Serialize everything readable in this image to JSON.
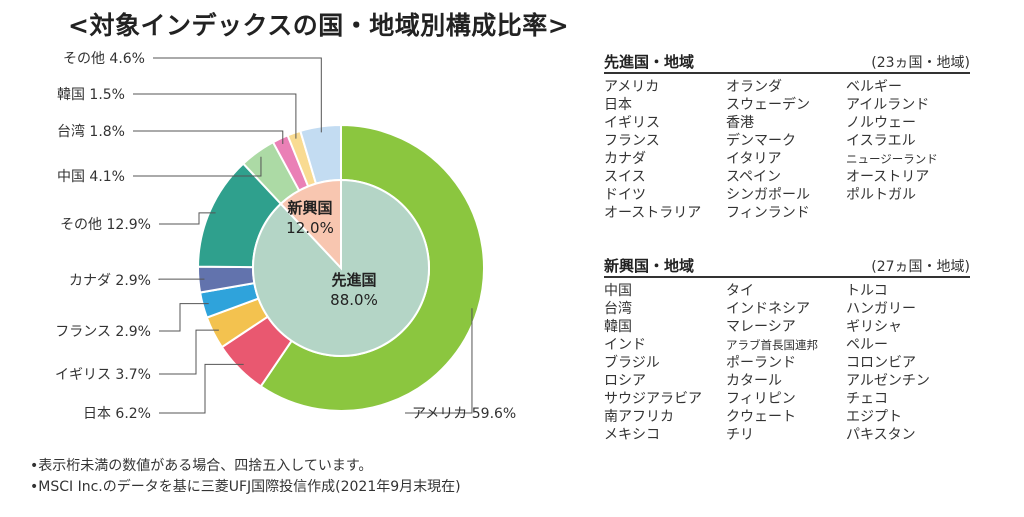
{
  "title": "<対象インデックスの国・地域別構成比率>",
  "chart_data": {
    "type": "pie",
    "title": "<対象インデックスの国・地域別構成比率>",
    "outer_slices": [
      {
        "label": "アメリカ",
        "value": 59.6,
        "text": "アメリカ 59.6%",
        "color": "#8bc63f"
      },
      {
        "label": "日本",
        "value": 6.2,
        "text": "日本 6.2%",
        "color": "#e95870"
      },
      {
        "label": "イギリス",
        "value": 3.7,
        "text": "イギリス 3.7%",
        "color": "#f3c24f"
      },
      {
        "label": "フランス",
        "value": 2.9,
        "text": "フランス 2.9%",
        "color": "#2fa3db"
      },
      {
        "label": "カナダ",
        "value": 2.9,
        "text": "カナダ 2.9%",
        "color": "#6273ad"
      },
      {
        "label": "その他",
        "value": 12.9,
        "text": "その他 12.9%",
        "color": "#2fa08d"
      },
      {
        "label": "中国",
        "value": 4.1,
        "text": "中国 4.1%",
        "color": "#acdaa5"
      },
      {
        "label": "台湾",
        "value": 1.8,
        "text": "台湾 1.8%",
        "color": "#ea80b6"
      },
      {
        "label": "韓国",
        "value": 1.5,
        "text": "韓国 1.5%",
        "color": "#f9db92"
      },
      {
        "label": "その他",
        "value": 4.6,
        "text": "その他 4.6%",
        "color": "#c3dcf2"
      }
    ],
    "inner_slices": [
      {
        "label": "先進国",
        "value": 88.0,
        "percent_text": "88.0%",
        "color": "#b4d5c6"
      },
      {
        "label": "新興国",
        "value": 12.0,
        "percent_text": "12.0%",
        "color": "#f8c6b0"
      }
    ]
  },
  "developed": {
    "title": "先進国・地域",
    "count": "(23ヵ国・地域)",
    "columns": [
      [
        "アメリカ",
        "日本",
        "イギリス",
        "フランス",
        "カナダ",
        "スイス",
        "ドイツ",
        "オーストラリア"
      ],
      [
        "オランダ",
        "スウェーデン",
        "香港",
        "デンマーク",
        "イタリア",
        "スペイン",
        "シンガポール",
        "フィンランド"
      ],
      [
        "ベルギー",
        "アイルランド",
        "ノルウェー",
        "イスラエル",
        "ニュージーランド",
        "オーストリア",
        "ポルトガル"
      ]
    ]
  },
  "emerging": {
    "title": "新興国・地域",
    "count": "(27ヵ国・地域)",
    "columns": [
      [
        "中国",
        "台湾",
        "韓国",
        "インド",
        "ブラジル",
        "ロシア",
        "サウジアラビア",
        "南アフリカ",
        "メキシコ"
      ],
      [
        "タイ",
        "インドネシア",
        "マレーシア",
        "アラブ首長国連邦",
        "ポーランド",
        "カタール",
        "フィリピン",
        "クウェート",
        "チリ"
      ],
      [
        "トルコ",
        "ハンガリー",
        "ギリシャ",
        "ペルー",
        "コロンビア",
        "アルゼンチン",
        "チェコ",
        "エジプト",
        "パキスタン"
      ]
    ]
  },
  "notes": [
    "•表示桁未満の数値がある場合、四捨五入しています。",
    "•MSCI Inc.のデータを基に三菱UFJ国際投信作成(2021年9月末現在)"
  ]
}
